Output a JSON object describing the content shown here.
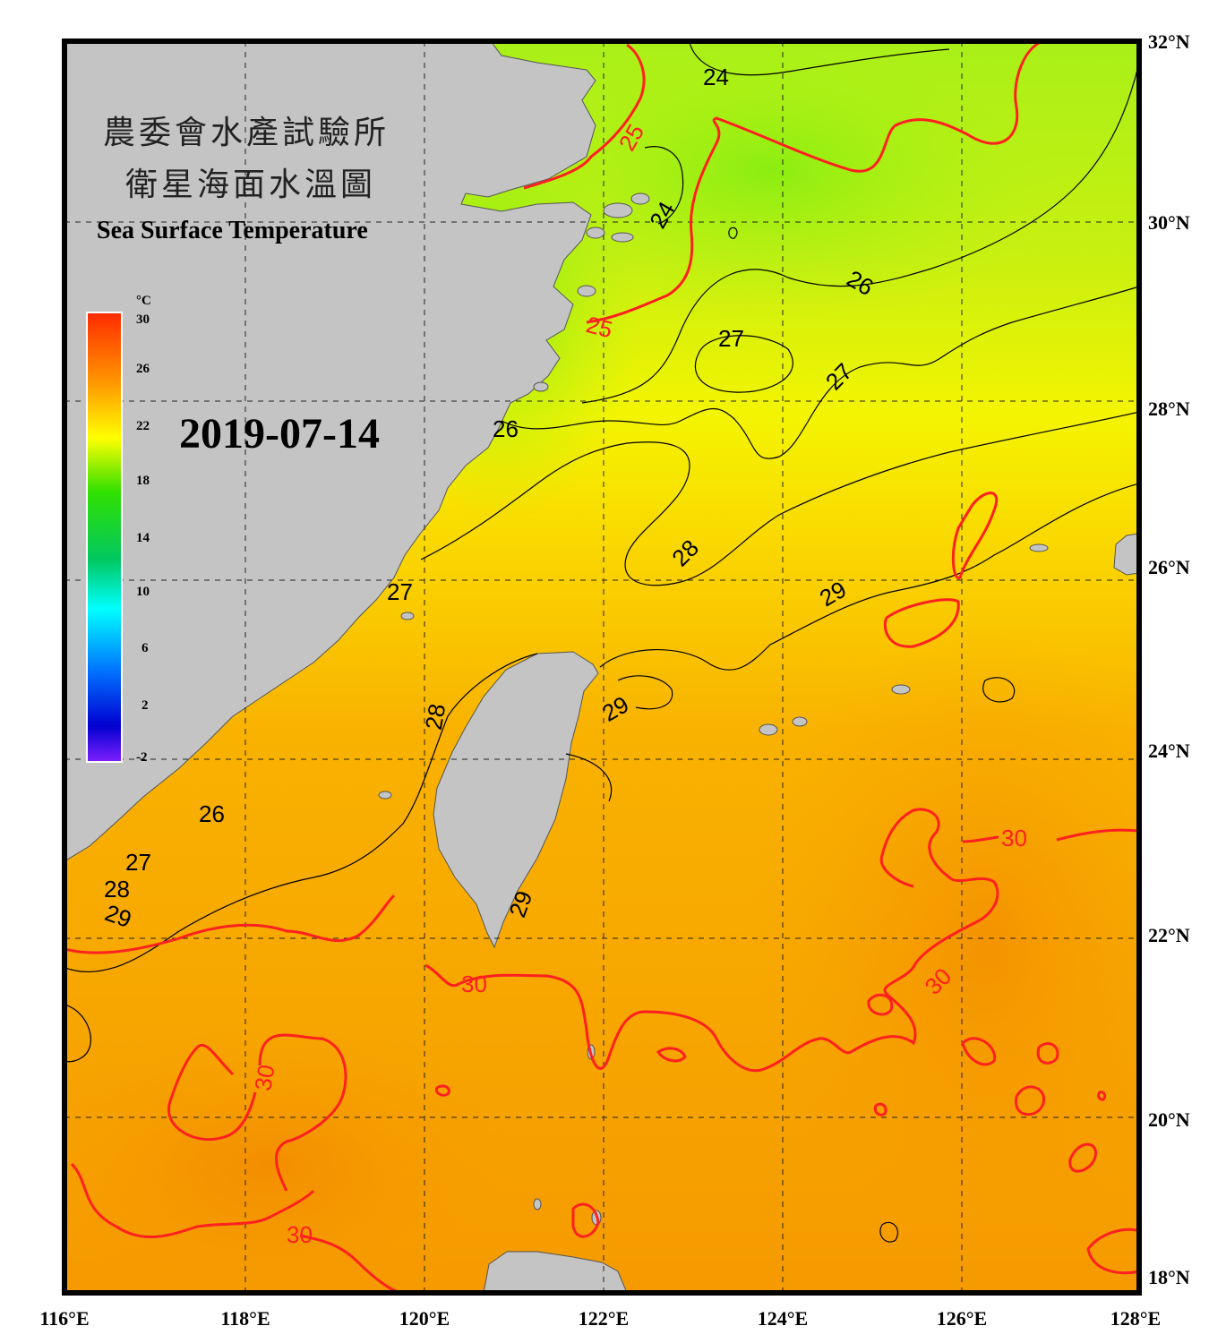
{
  "title": {
    "line1": "農委會水產試驗所",
    "line2": "衛星海面水溫圖",
    "english": "Sea Surface Temperature"
  },
  "date": "2019-07-14",
  "colorbar": {
    "unit": "°C",
    "ticks": [
      "30",
      "26",
      "22",
      "18",
      "14",
      "10",
      "6",
      "2",
      "-2"
    ]
  },
  "axes": {
    "x_labels": [
      "116°E",
      "118°E",
      "120°E",
      "122°E",
      "124°E",
      "126°E",
      "128°E"
    ],
    "y_labels": [
      "32°N",
      "30°N",
      "28°N",
      "26°N",
      "24°N",
      "22°N",
      "20°N",
      "18°N"
    ]
  },
  "contour_labels": [
    {
      "text": "24",
      "color": "#000000"
    },
    {
      "text": "25",
      "color": "#ff2020"
    },
    {
      "text": "24",
      "color": "#000000"
    },
    {
      "text": "25",
      "color": "#ff2020"
    },
    {
      "text": "26",
      "color": "#000000"
    },
    {
      "text": "27",
      "color": "#000000"
    },
    {
      "text": "27",
      "color": "#000000"
    },
    {
      "text": "26",
      "color": "#000000"
    },
    {
      "text": "28",
      "color": "#000000"
    },
    {
      "text": "29",
      "color": "#000000"
    },
    {
      "text": "27",
      "color": "#000000"
    },
    {
      "text": "28",
      "color": "#000000"
    },
    {
      "text": "29",
      "color": "#000000"
    },
    {
      "text": "26",
      "color": "#000000"
    },
    {
      "text": "27",
      "color": "#000000"
    },
    {
      "text": "28",
      "color": "#000000"
    },
    {
      "text": "29",
      "color": "#000000"
    },
    {
      "text": "29",
      "color": "#000000"
    },
    {
      "text": "30",
      "color": "#ff2020"
    },
    {
      "text": "30",
      "color": "#ff2020"
    },
    {
      "text": "30",
      "color": "#ff2020"
    },
    {
      "text": "30",
      "color": "#ff2020"
    },
    {
      "text": "30",
      "color": "#ff2020"
    }
  ],
  "colors": {
    "land": "#c4c4c4",
    "contour_30": "#ff2020",
    "contour_25": "#ff2020",
    "frame": "#000000"
  }
}
